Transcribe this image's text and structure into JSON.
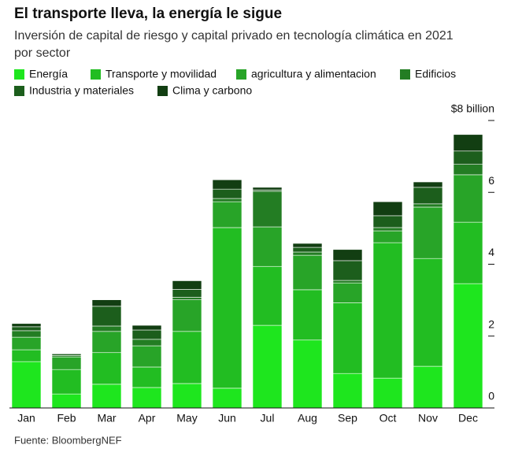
{
  "chart_data": {
    "type": "stacked_bar",
    "title": "El transporte lleva, la energía le sigue",
    "subtitle": [
      "Inversión de capital de riesgo y capital privado en tecnología climática en 2021",
      "por sector"
    ],
    "source": "Fuente: BloombergNEF",
    "categories": [
      "Jan",
      "Feb",
      "Mar",
      "Apr",
      "May",
      "Jun",
      "Jul",
      "Aug",
      "Sep",
      "Oct",
      "Nov",
      "Dec"
    ],
    "series": [
      {
        "name": "Energía",
        "color": "#1ee61e",
        "values": [
          1.29,
          0.39,
          0.66,
          0.57,
          0.68,
          0.55,
          2.3,
          1.89,
          0.96,
          0.83,
          1.16,
          3.46
        ]
      },
      {
        "name": "Transporte y movilidad",
        "color": "#22bd22",
        "values": [
          0.33,
          0.68,
          0.88,
          0.57,
          1.45,
          4.47,
          1.64,
          1.4,
          1.97,
          3.77,
          3.0,
          1.71
        ]
      },
      {
        "name": "agricultura y alimentacion",
        "color": "#28a428",
        "values": [
          0.35,
          0.35,
          0.59,
          0.59,
          0.88,
          0.72,
          1.1,
          0.96,
          0.55,
          0.33,
          1.43,
          1.32
        ]
      },
      {
        "name": "Edificios",
        "color": "#237d23",
        "values": [
          0.18,
          0.04,
          0.15,
          0.18,
          0.07,
          0.09,
          0.99,
          0.09,
          0.07,
          0.09,
          0.09,
          0.29
        ]
      },
      {
        "name": "Industria y materiales",
        "color": "#1c5e1c",
        "values": [
          0.11,
          0.04,
          0.55,
          0.26,
          0.22,
          0.26,
          0.04,
          0.13,
          0.55,
          0.33,
          0.46,
          0.37
        ]
      },
      {
        "name": "Clima y carbono",
        "color": "#123e12",
        "values": [
          0.09,
          0.02,
          0.18,
          0.13,
          0.24,
          0.26,
          0.07,
          0.11,
          0.31,
          0.39,
          0.15,
          0.46
        ]
      }
    ],
    "ylim": [
      0,
      8
    ],
    "yticks": [
      0,
      2,
      4,
      6,
      {
        "value": 8,
        "label": "$8 billion"
      }
    ]
  }
}
